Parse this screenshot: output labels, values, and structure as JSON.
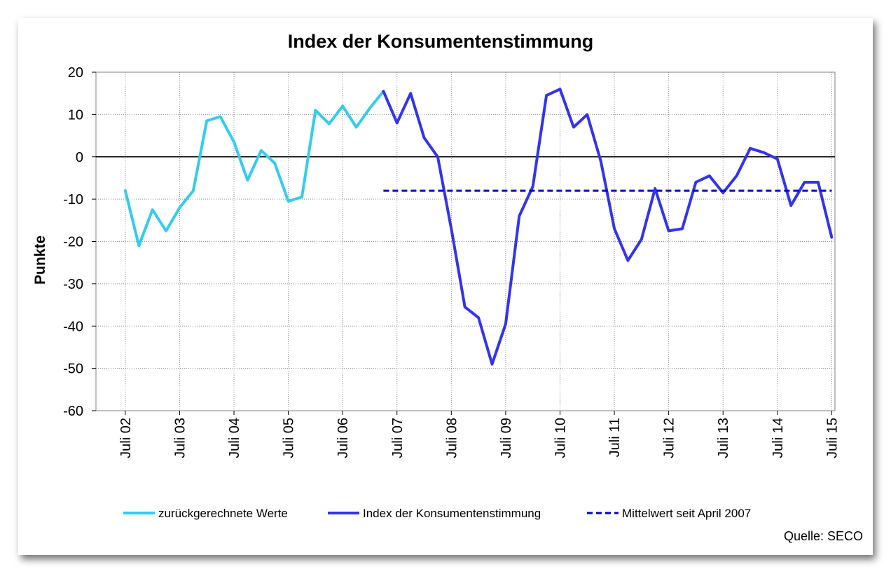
{
  "chart_data": {
    "type": "line",
    "title": "Index der Konsumentenstimmung",
    "ylabel": "Punkte",
    "xlabel": "",
    "ylim": [
      -60,
      20
    ],
    "yticks": [
      20,
      10,
      0,
      -10,
      -20,
      -30,
      -40,
      -50,
      -60
    ],
    "xticks": [
      "Juli 02",
      "Juli 03",
      "Juli 04",
      "Juli 05",
      "Juli 06",
      "Juli 07",
      "Juli 08",
      "Juli 09",
      "Juli 10",
      "Juli 11",
      "Juli 12",
      "Juli 13",
      "Juli 14",
      "Juli 15"
    ],
    "grid": true,
    "legend_position": "bottom",
    "source": "Quelle: SECO",
    "series": [
      {
        "name": "zurückgerechnete Werte",
        "color": "#33CCEE",
        "style": "solid",
        "x": [
          2002.54,
          2002.79,
          2003.04,
          2003.29,
          2003.54,
          2003.79,
          2004.04,
          2004.29,
          2004.54,
          2004.79,
          2005.04,
          2005.29,
          2005.54,
          2005.79,
          2006.04,
          2006.29,
          2006.54,
          2006.79,
          2007.04,
          2007.29
        ],
        "values": [
          -8,
          -21,
          -12.5,
          -17.5,
          -12,
          -8,
          8.5,
          9.5,
          3.5,
          -5.5,
          1.5,
          -1.5,
          -10.5,
          -9.5,
          11,
          7.8,
          12,
          7,
          11.5,
          15.5
        ]
      },
      {
        "name": "Index der Konsumentenstimmung",
        "color": "#3333EE",
        "style": "solid",
        "x": [
          2007.29,
          2007.54,
          2007.79,
          2008.04,
          2008.29,
          2008.54,
          2008.79,
          2009.04,
          2009.29,
          2009.54,
          2009.79,
          2010.04,
          2010.29,
          2010.54,
          2010.79,
          2011.04,
          2011.29,
          2011.54,
          2011.79,
          2012.04,
          2012.29,
          2012.54,
          2012.79,
          2013.04,
          2013.29,
          2013.54,
          2013.79,
          2014.04,
          2014.29,
          2014.54,
          2014.79,
          2015.04,
          2015.29,
          2015.54
        ],
        "values": [
          15.5,
          8,
          15,
          4.5,
          0,
          -17,
          -35.5,
          -38,
          -49,
          -39.5,
          -14,
          -7,
          14.5,
          16,
          7,
          10,
          -1,
          -17,
          -24.5,
          -19.5,
          -7.5,
          -17.5,
          -17,
          -6,
          -4.5,
          -8.5,
          -4.5,
          2,
          1,
          -0.5,
          -11.5,
          -6,
          -6,
          -19
        ]
      },
      {
        "name": "Mittelwert seit April 2007",
        "color": "#0000CC",
        "style": "dashed",
        "x": [
          2007.29,
          2015.54
        ],
        "values": [
          -8,
          -8
        ]
      }
    ]
  }
}
